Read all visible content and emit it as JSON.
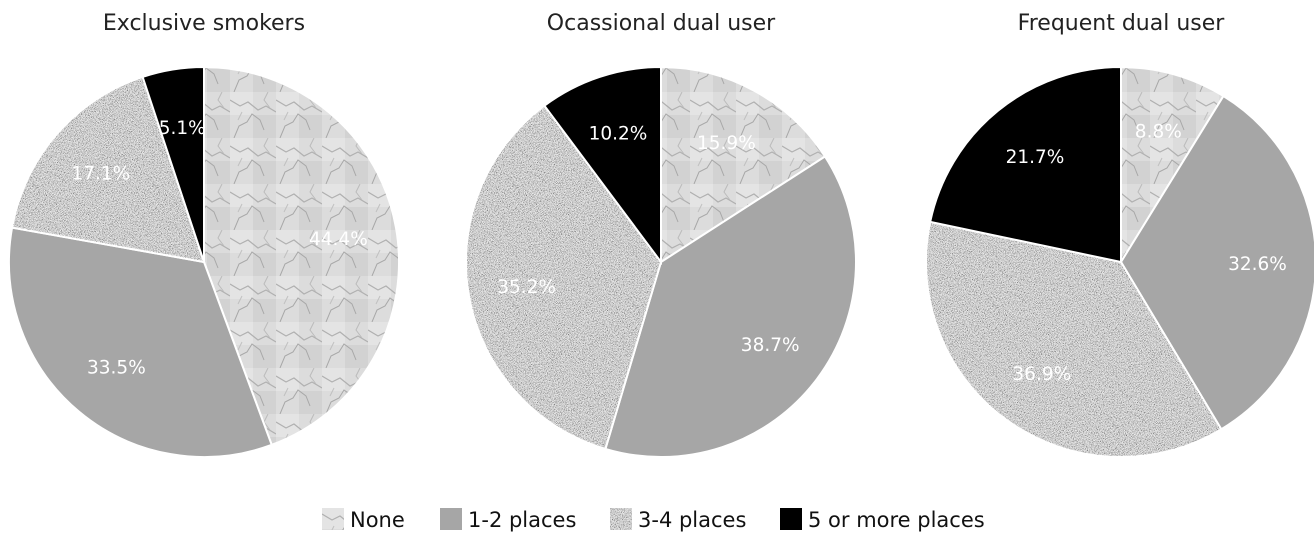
{
  "chart_data": [
    {
      "type": "pie",
      "title": "Exclusive smokers",
      "categories": [
        "None",
        "1-2 places",
        "3-4 places",
        "5 or more places"
      ],
      "values": [
        44.4,
        33.5,
        17.1,
        5.1
      ],
      "labels": [
        "44.4%",
        "33.5%",
        "17.1%",
        "5.1%"
      ]
    },
    {
      "type": "pie",
      "title": "Ocassional dual user",
      "categories": [
        "None",
        "1-2 places",
        "3-4 places",
        "5 or more places"
      ],
      "values": [
        15.9,
        38.7,
        35.2,
        10.2
      ],
      "labels": [
        "15.9%",
        "38.7%",
        "35.2%",
        "10.2%"
      ]
    },
    {
      "type": "pie",
      "title": "Frequent dual user",
      "categories": [
        "None",
        "1-2 places",
        "3-4 places",
        "5 or more places"
      ],
      "values": [
        8.8,
        32.6,
        36.9,
        21.7
      ],
      "labels": [
        "8.8%",
        "32.6%",
        "36.9%",
        "21.7%"
      ]
    }
  ],
  "legend": {
    "items": [
      {
        "label": "None",
        "pattern": "marble",
        "color": "#d6d6d6"
      },
      {
        "label": "1-2 places",
        "pattern": "solid",
        "color": "#a6a6a6"
      },
      {
        "label": "3-4 places",
        "pattern": "noise",
        "color": "#6e6e6e"
      },
      {
        "label": "5 or more places",
        "pattern": "solid",
        "color": "#000000"
      }
    ]
  }
}
